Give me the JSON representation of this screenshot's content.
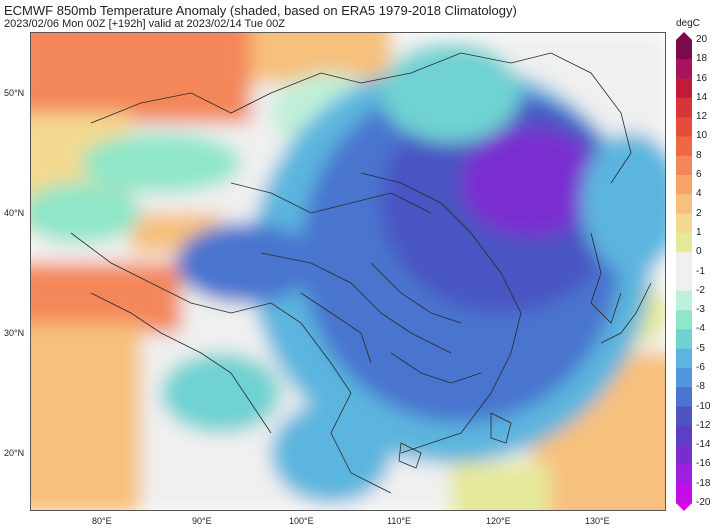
{
  "header": {
    "title": "ECMWF 850mb Temperature Anomaly (shaded, based on ERA5 1979-2018 Climatology)",
    "subtitle": "2023/02/06 Mon 00Z [+192h] valid at 2023/02/14 Tue 00Z"
  },
  "latitude_labels": [
    "50°N",
    "40°N",
    "30°N",
    "20°N"
  ],
  "longitude_labels": [
    "80°E",
    "90°E",
    "100°E",
    "110°E",
    "120°E",
    "130°E"
  ],
  "colorbar": {
    "unit": "degC",
    "ticks": [
      "20",
      "18",
      "16",
      "14",
      "12",
      "10",
      "8",
      "6",
      "4",
      "2",
      "1",
      "0",
      "-1",
      "-2",
      "-3",
      "-4",
      "-5",
      "-6",
      "-8",
      "-10",
      "-12",
      "-14",
      "-16",
      "-18",
      "-20"
    ],
    "colors": [
      "#7b0a4a",
      "#a8135e",
      "#c21c3d",
      "#d8343a",
      "#e54d3a",
      "#ef6844",
      "#f4875a",
      "#f6a36a",
      "#f7c07d",
      "#f3d98f",
      "#e6e89a",
      "#f0f0f0",
      "#f0f0f0",
      "#bff0d9",
      "#8fe6c9",
      "#6fd2d2",
      "#5cb5de",
      "#4f96da",
      "#4a74cf",
      "#4a55c2",
      "#5c3fc4",
      "#7a2dcf",
      "#a01fde",
      "#c40ee8",
      "#e300f0"
    ]
  },
  "map_legend_colors": {
    "ocean": "#f0f0f0",
    "very_warm": "#f4875a",
    "warm": "#f7c07d",
    "mild": "#e6e89a",
    "neutral": "#f0f0f0",
    "cool": "#8fe6c9",
    "cold": "#5cb5de",
    "colder": "#4a74cf",
    "coldest": "#7a2dcf",
    "border": "#2a2a2a"
  }
}
